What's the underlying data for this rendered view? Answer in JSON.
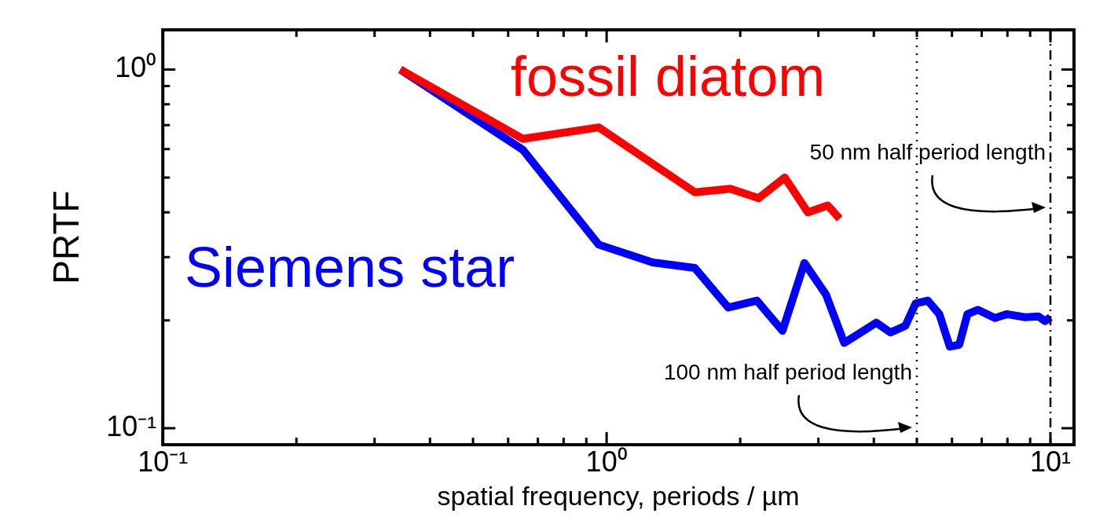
{
  "chart_data": {
    "type": "line",
    "xlabel": "spatial frequency, periods / µm",
    "ylabel": "PRTF",
    "log": "xy",
    "legend": false,
    "grid": false,
    "marker": "none",
    "line_style": "solid",
    "xlim": [
      0.1,
      11.3
    ],
    "ylim": [
      0.09,
      1.29
    ],
    "xticks": [
      {
        "value": 0.1,
        "label": "10⁻¹"
      },
      {
        "value": 0.2,
        "label": null
      },
      {
        "value": 0.3,
        "label": null
      },
      {
        "value": 0.4,
        "label": null
      },
      {
        "value": 0.5,
        "label": null
      },
      {
        "value": 0.6,
        "label": null
      },
      {
        "value": 0.7,
        "label": null
      },
      {
        "value": 0.8,
        "label": null
      },
      {
        "value": 0.9,
        "label": null
      },
      {
        "value": 1,
        "label": "10⁰"
      },
      {
        "value": 2,
        "label": null
      },
      {
        "value": 3,
        "label": null
      },
      {
        "value": 4,
        "label": null
      },
      {
        "value": 5,
        "label": null
      },
      {
        "value": 6,
        "label": null
      },
      {
        "value": 7,
        "label": null
      },
      {
        "value": 8,
        "label": null
      },
      {
        "value": 9,
        "label": null
      },
      {
        "value": 10,
        "label": "10¹"
      }
    ],
    "yticks": [
      {
        "value": 0.1,
        "label": "10⁻¹"
      },
      {
        "value": 0.2,
        "label": null
      },
      {
        "value": 0.3,
        "label": null
      },
      {
        "value": 0.4,
        "label": null
      },
      {
        "value": 0.5,
        "label": null
      },
      {
        "value": 0.6,
        "label": null
      },
      {
        "value": 0.7,
        "label": null
      },
      {
        "value": 0.8,
        "label": null
      },
      {
        "value": 0.9,
        "label": null
      },
      {
        "value": 1,
        "label": "10⁰"
      }
    ],
    "series": [
      {
        "name": "fossil diatom",
        "color": "#ff0000",
        "x": [
          0.343,
          0.647,
          0.96,
          1.58,
          1.9,
          2.2,
          2.52,
          2.84,
          3.15,
          3.35
        ],
        "values": [
          1.0,
          0.641,
          0.69,
          0.455,
          0.465,
          0.438,
          0.5,
          0.4,
          0.418,
          0.384
        ]
      },
      {
        "name": "Siemens star",
        "color": "#0000ff",
        "x": [
          0.343,
          0.647,
          0.96,
          1.27,
          1.58,
          1.88,
          2.18,
          2.49,
          2.79,
          3.12,
          3.43,
          4.05,
          4.36,
          4.71,
          4.97,
          5.29,
          5.62,
          5.93,
          6.23,
          6.5,
          6.86,
          7.5,
          7.98,
          8.77,
          9.4,
          9.72,
          10.0
        ],
        "values": [
          1.0,
          0.598,
          0.325,
          0.29,
          0.28,
          0.217,
          0.227,
          0.187,
          0.289,
          0.236,
          0.173,
          0.197,
          0.185,
          0.193,
          0.223,
          0.227,
          0.208,
          0.169,
          0.171,
          0.208,
          0.214,
          0.203,
          0.208,
          0.204,
          0.205,
          0.199,
          0.204
        ]
      }
    ],
    "ref_lines": [
      {
        "axis": "x",
        "value": 5,
        "line_style": "dotted",
        "color": "#000000"
      },
      {
        "axis": "x",
        "value": 10,
        "line_style": "dashed",
        "color": "#000000"
      }
    ],
    "annotations": [
      {
        "text": "50 nm half period length",
        "x": 10,
        "y": 0.41
      },
      {
        "text": "100 nm half period length",
        "x": 5,
        "y": 0.1
      }
    ]
  }
}
